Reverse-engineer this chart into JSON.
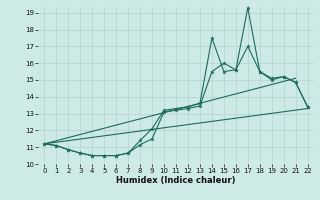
{
  "xlabel": "Humidex (Indice chaleur)",
  "bg_color": "#ceeae6",
  "grid_color": "#b8d8d4",
  "line_color": "#1a6b5a",
  "xlim": [
    -0.5,
    22.5
  ],
  "ylim": [
    10,
    19.4
  ],
  "yticks": [
    10,
    11,
    12,
    13,
    14,
    15,
    16,
    17,
    18,
    19
  ],
  "xticks": [
    0,
    1,
    2,
    3,
    4,
    5,
    6,
    7,
    8,
    9,
    10,
    11,
    12,
    13,
    14,
    15,
    16,
    17,
    18,
    19,
    20,
    21,
    22
  ],
  "series_spiky": {
    "x": [
      0,
      1,
      2,
      3,
      4,
      5,
      6,
      7,
      8,
      9,
      10,
      11,
      12,
      13,
      14,
      15,
      16,
      17,
      18,
      19,
      20,
      21,
      22
    ],
    "y": [
      11.2,
      11.1,
      10.85,
      10.65,
      10.5,
      10.5,
      10.5,
      10.65,
      11.15,
      11.5,
      13.1,
      13.2,
      13.3,
      13.45,
      15.5,
      16.0,
      15.6,
      17.0,
      15.5,
      15.1,
      15.2,
      14.85,
      13.4
    ]
  },
  "series_spiky2": {
    "x": [
      0,
      1,
      2,
      3,
      4,
      5,
      6,
      7,
      8,
      9,
      10,
      11,
      12,
      13,
      14,
      15,
      16,
      17,
      18,
      19,
      20,
      21,
      22
    ],
    "y": [
      11.2,
      11.1,
      10.85,
      10.65,
      10.5,
      10.5,
      10.5,
      10.65,
      11.4,
      12.1,
      13.2,
      13.3,
      13.4,
      13.6,
      17.5,
      15.5,
      15.6,
      19.3,
      15.5,
      15.0,
      15.2,
      14.85,
      13.4
    ]
  },
  "line1": {
    "x": [
      0,
      22
    ],
    "y": [
      11.2,
      13.3
    ]
  },
  "line2": {
    "x": [
      0,
      21
    ],
    "y": [
      11.2,
      15.1
    ]
  }
}
